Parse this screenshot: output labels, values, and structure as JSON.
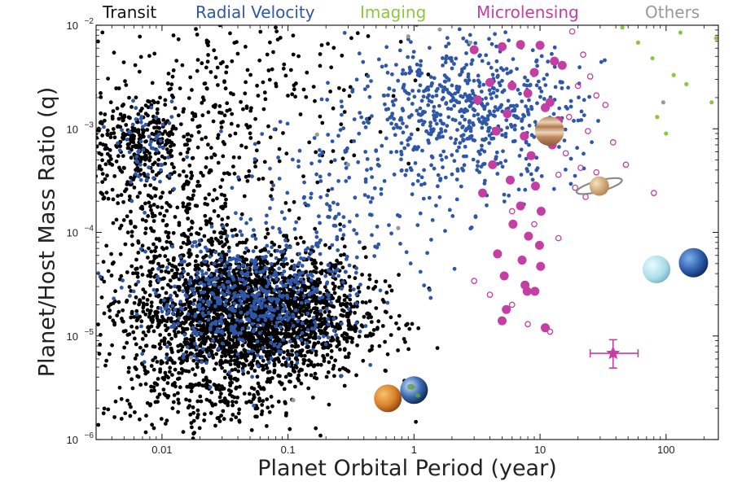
{
  "chart_data": {
    "type": "scatter",
    "xlabel": "Planet Orbital Period (year)",
    "ylabel": "Planet/Host Mass Ratio (q)",
    "xscale": "log",
    "yscale": "log",
    "xlim": [
      0.003,
      260
    ],
    "ylim": [
      1e-06,
      0.01
    ],
    "x_ticks": [
      "0.01",
      "0.1",
      "1",
      "10",
      "100"
    ],
    "y_ticks": [
      {
        "base": "10",
        "exp": "−2",
        "value": 0.01
      },
      {
        "base": "10",
        "exp": "−3",
        "value": 0.001
      },
      {
        "base": "10",
        "exp": "−4",
        "value": 0.0001
      },
      {
        "base": "10",
        "exp": "−5",
        "value": 1e-05
      },
      {
        "base": "10",
        "exp": "−6",
        "value": 1e-06
      }
    ],
    "legend_placement": "top",
    "series": [
      {
        "name": "Transit",
        "color": "#000000",
        "marker": "dot",
        "clusters": [
          {
            "x_center": 0.05,
            "y_center": 1.6e-05,
            "x_spread_dex": 0.45,
            "y_spread_dex": 0.32,
            "count": 2600
          },
          {
            "x_center": 0.006,
            "y_center": 0.0007,
            "x_spread_dex": 0.18,
            "y_spread_dex": 0.22,
            "count": 240
          },
          {
            "x_center": 0.012,
            "y_center": 0.00015,
            "x_spread_dex": 0.35,
            "y_spread_dex": 0.6,
            "count": 450
          },
          {
            "x_center": 0.02,
            "y_center": 2.5e-06,
            "x_spread_dex": 0.4,
            "y_spread_dex": 0.25,
            "count": 220
          },
          {
            "x_center": 0.05,
            "y_center": 0.002,
            "x_spread_dex": 0.55,
            "y_spread_dex": 0.45,
            "count": 250
          }
        ]
      },
      {
        "name": "Radial Velocity",
        "color": "#2f57a8",
        "marker": "dot",
        "clusters": [
          {
            "x_center": 2.5,
            "y_center": 0.0015,
            "x_spread_dex": 0.45,
            "y_spread_dex": 0.35,
            "count": 650
          },
          {
            "x_center": 0.05,
            "y_center": 2.2e-05,
            "x_spread_dex": 0.4,
            "y_spread_dex": 0.3,
            "count": 550
          },
          {
            "x_center": 0.3,
            "y_center": 0.0002,
            "x_spread_dex": 0.45,
            "y_spread_dex": 0.45,
            "count": 180
          },
          {
            "x_center": 0.008,
            "y_center": 0.0006,
            "x_spread_dex": 0.12,
            "y_spread_dex": 0.2,
            "count": 60
          }
        ]
      },
      {
        "name": "Imaging",
        "color": "#8dc63f",
        "marker": "dot",
        "points": [
          [
            45,
            0.0095
          ],
          [
            130,
            0.0085
          ],
          [
            78,
            0.0048
          ],
          [
            115,
            0.0033
          ],
          [
            145,
            0.0027
          ],
          [
            230,
            0.0018
          ],
          [
            85,
            0.0013
          ],
          [
            100,
            0.0009
          ],
          [
            250,
            0.0075
          ],
          [
            60,
            0.0068
          ]
        ]
      },
      {
        "name": "Microlensing",
        "color": "#c53ea4",
        "marker": "circle",
        "points": [
          [
            3,
            0.0058
          ],
          [
            5,
            0.0062
          ],
          [
            7,
            0.0065
          ],
          [
            10,
            0.0064
          ],
          [
            13,
            0.0045
          ],
          [
            9,
            0.0035
          ],
          [
            15,
            0.0041
          ],
          [
            4,
            0.0028
          ],
          [
            6,
            0.0026
          ],
          [
            8,
            0.0022
          ],
          [
            12,
            0.0018
          ],
          [
            3.2,
            0.0019
          ],
          [
            5.5,
            0.0014
          ],
          [
            11,
            0.0016
          ],
          [
            14,
            0.0012
          ],
          [
            4.5,
            0.00095
          ],
          [
            7.5,
            0.00085
          ],
          [
            12.5,
            0.0007
          ],
          [
            8.5,
            0.00055
          ],
          [
            4.2,
            0.00045
          ],
          [
            5.8,
            0.00032
          ],
          [
            9.2,
            0.00028
          ],
          [
            3.5,
            0.00024
          ],
          [
            7,
            0.00018
          ],
          [
            10.2,
            0.00016
          ],
          [
            6.1,
            0.00012
          ],
          [
            8.1,
            9.2e-05
          ],
          [
            9.9,
            7.5e-05
          ],
          [
            4.6,
            6.2e-05
          ],
          [
            7.2,
            5.4e-05
          ],
          [
            10.1,
            4.7e-05
          ],
          [
            5.2,
            3.8e-05
          ],
          [
            7.6,
            3.1e-05
          ],
          [
            9.1,
            2.7e-05
          ],
          [
            5.4,
            1.8e-05
          ],
          [
            7.9,
            2.7e-05
          ],
          [
            5,
            1.4e-05
          ],
          [
            11,
            1.2e-05
          ]
        ]
      },
      {
        "name": "Microlensing (open)",
        "color": "#c53ea4",
        "marker": "ring",
        "points": [
          [
            18,
            0.0087
          ],
          [
            22,
            0.0052
          ],
          [
            20,
            0.0026
          ],
          [
            25,
            0.0032
          ],
          [
            28,
            0.0021
          ],
          [
            33,
            0.0017
          ],
          [
            17,
            0.0013
          ],
          [
            24,
            0.00095
          ],
          [
            38,
            0.00074
          ],
          [
            16,
            0.00058
          ],
          [
            21,
            0.00042
          ],
          [
            28,
            0.00038
          ],
          [
            48,
            0.00045
          ],
          [
            14,
            0.00036
          ],
          [
            19,
            0.00027
          ],
          [
            23,
            0.00022
          ],
          [
            6,
            0.00016
          ],
          [
            9,
            0.00012
          ],
          [
            14,
            8.8e-05
          ],
          [
            3,
            3.4e-05
          ],
          [
            6,
            2e-05
          ],
          [
            12,
            1.1e-05
          ],
          [
            8,
            1.3e-05
          ],
          [
            4,
            2.5e-05
          ],
          [
            32,
            0.00025
          ],
          [
            80,
            0.00024
          ]
        ]
      },
      {
        "name": "Others",
        "color": "#999999",
        "marker": "dot",
        "points": [
          [
            0.9,
            0.0078
          ],
          [
            1.6,
            0.0091
          ],
          [
            0.3,
            0.00045
          ],
          [
            0.17,
            0.00088
          ],
          [
            0.11,
            2.4e-06
          ],
          [
            2.8,
            0.0068
          ],
          [
            95,
            0.0018
          ],
          [
            0.017,
            6.2e-06
          ],
          [
            0.75,
            0.00011
          ]
        ]
      },
      {
        "name": "Microlensing star",
        "color": "#c53ea4",
        "marker": "star",
        "points": [
          [
            38,
            6.8e-06
          ]
        ],
        "x_err": [
          25,
          60
        ],
        "y_err": [
          4.9e-06,
          9.2e-06
        ]
      }
    ],
    "solar_system_icons": [
      {
        "name": "Venus",
        "x": 0.62,
        "y": 2.5e-06,
        "color": "#d9822b"
      },
      {
        "name": "Earth",
        "x": 1.0,
        "y": 3e-06,
        "color": "#3f6fb5"
      },
      {
        "name": "Jupiter",
        "x": 11.9,
        "y": 0.00095,
        "color": "#c9a27b"
      },
      {
        "name": "Saturn",
        "x": 29.5,
        "y": 0.00028,
        "color": "#d7b98a"
      },
      {
        "name": "Uranus",
        "x": 84,
        "y": 4.4e-05,
        "color": "#b6e2ec"
      },
      {
        "name": "Neptune",
        "x": 165,
        "y": 5.1e-05,
        "color": "#2b5aa6"
      }
    ]
  }
}
